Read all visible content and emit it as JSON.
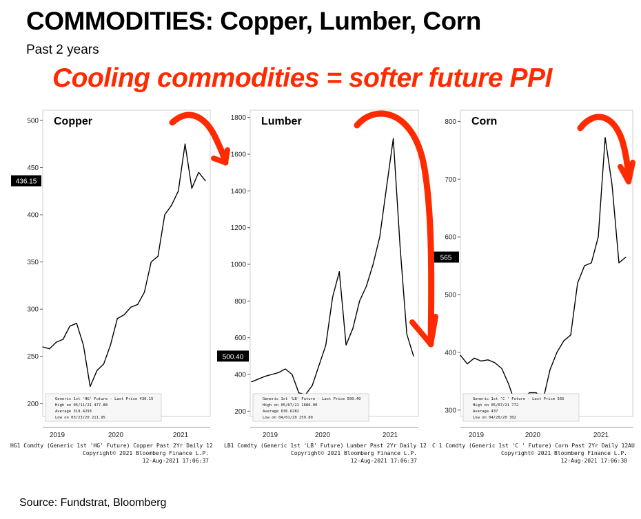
{
  "header": {
    "title": "COMMODITIES: Copper, Lumber, Corn",
    "subtitle": "Past 2 years",
    "headline": "Cooling commodities = softer future PPI"
  },
  "footer": {
    "source": "Source: Fundstrat, Bloomberg"
  },
  "colors": {
    "headline": "#ff2a00",
    "arrow": "#ff2a00",
    "line": "#000000",
    "label_bg": "#000000"
  },
  "chart_data": [
    {
      "type": "line",
      "title": "Copper",
      "x_ticks": [
        "2019",
        "2020",
        "2021"
      ],
      "ylim": [
        190,
        505
      ],
      "y_ticks": [
        200,
        250,
        300,
        350,
        400,
        450,
        500
      ],
      "last_price_label": "436.15",
      "series": [
        {
          "x": [
            "2019-08",
            "2019-09",
            "2019-10",
            "2019-11",
            "2019-12",
            "2020-01",
            "2020-02",
            "2020-03",
            "2020-04",
            "2020-05",
            "2020-06",
            "2020-07",
            "2020-08",
            "2020-09",
            "2020-10",
            "2020-11",
            "2020-12",
            "2021-01",
            "2021-02",
            "2021-03",
            "2021-04",
            "2021-05",
            "2021-06",
            "2021-07",
            "2021-08"
          ],
          "values": [
            260,
            258,
            265,
            268,
            282,
            285,
            262,
            218,
            235,
            242,
            262,
            290,
            294,
            302,
            305,
            318,
            350,
            356,
            400,
            410,
            425,
            475,
            428,
            445,
            436
          ]
        }
      ],
      "legend": [
        "Generic 1st 'HG' Future - Last Price  436.15",
        "High on 05/11/21  477.88",
        "Average  319.4293",
        "Low on 03/23/20  211.95"
      ],
      "footer": [
        "HG1 Comdty (Generic 1st 'HG' Future) Copper Past 2Yr  Daily 12",
        "Copyright© 2021 Bloomberg Finance L.P.",
        "12-Aug-2021 17:06:37"
      ]
    },
    {
      "type": "line",
      "title": "Lumber",
      "x_ticks": [
        "2019",
        "2020",
        "2021"
      ],
      "ylim": [
        190,
        1810
      ],
      "y_ticks": [
        200,
        400,
        600,
        800,
        1000,
        1200,
        1400,
        1600,
        1800
      ],
      "last_price_label": "500.40",
      "series": [
        {
          "x": [
            "2019-08",
            "2019-09",
            "2019-10",
            "2019-11",
            "2019-12",
            "2020-01",
            "2020-02",
            "2020-03",
            "2020-04",
            "2020-05",
            "2020-06",
            "2020-07",
            "2020-08",
            "2020-09",
            "2020-10",
            "2020-11",
            "2020-12",
            "2021-01",
            "2021-02",
            "2021-03",
            "2021-04",
            "2021-05",
            "2021-06",
            "2021-07",
            "2021-08"
          ],
          "values": [
            360,
            375,
            390,
            400,
            410,
            430,
            400,
            300,
            290,
            340,
            450,
            560,
            820,
            960,
            560,
            650,
            800,
            880,
            1000,
            1150,
            1420,
            1685,
            1100,
            620,
            500
          ]
        }
      ],
      "legend": [
        "Generic 1st 'LB' Future - Last Price  500.40",
        "High on 05/07/21  1686.00",
        "Average  636.6282",
        "Low on 04/01/20  259.80"
      ],
      "footer": [
        "LB1 Comdty (Generic 1st 'LB' Future) Lumber Past 2Yr  Daily 12",
        "Copyright© 2021 Bloomberg Finance L.P.",
        "12-Aug-2021 17:06:37"
      ]
    },
    {
      "type": "line",
      "title": "Corn",
      "x_ticks": [
        "2019",
        "2020",
        "2021"
      ],
      "ylim": [
        295,
        810
      ],
      "y_ticks": [
        300,
        400,
        500,
        600,
        700,
        800
      ],
      "last_price_label": "565",
      "series": [
        {
          "x": [
            "2019-08",
            "2019-09",
            "2019-10",
            "2019-11",
            "2019-12",
            "2020-01",
            "2020-02",
            "2020-03",
            "2020-04",
            "2020-05",
            "2020-06",
            "2020-07",
            "2020-08",
            "2020-09",
            "2020-10",
            "2020-11",
            "2020-12",
            "2021-01",
            "2021-02",
            "2021-03",
            "2021-04",
            "2021-05",
            "2021-06",
            "2021-07",
            "2021-08"
          ],
          "values": [
            395,
            380,
            390,
            385,
            387,
            382,
            372,
            345,
            310,
            318,
            330,
            330,
            318,
            370,
            400,
            420,
            430,
            520,
            550,
            555,
            600,
            772,
            690,
            555,
            565
          ]
        }
      ],
      "legend": [
        "Generic 1st 'C ' Future - Last Price  565",
        "High on 05/07/21  772",
        "Average  437",
        "Low on 04/28/20  302"
      ],
      "footer": [
        "C 1 Comdty (Generic 1st 'C ' Future) Corn Past 2Yr  Daily 12AU",
        "Copyright© 2021 Bloomberg Finance L.P.",
        "12-Aug-2021 17:06:38"
      ]
    }
  ]
}
